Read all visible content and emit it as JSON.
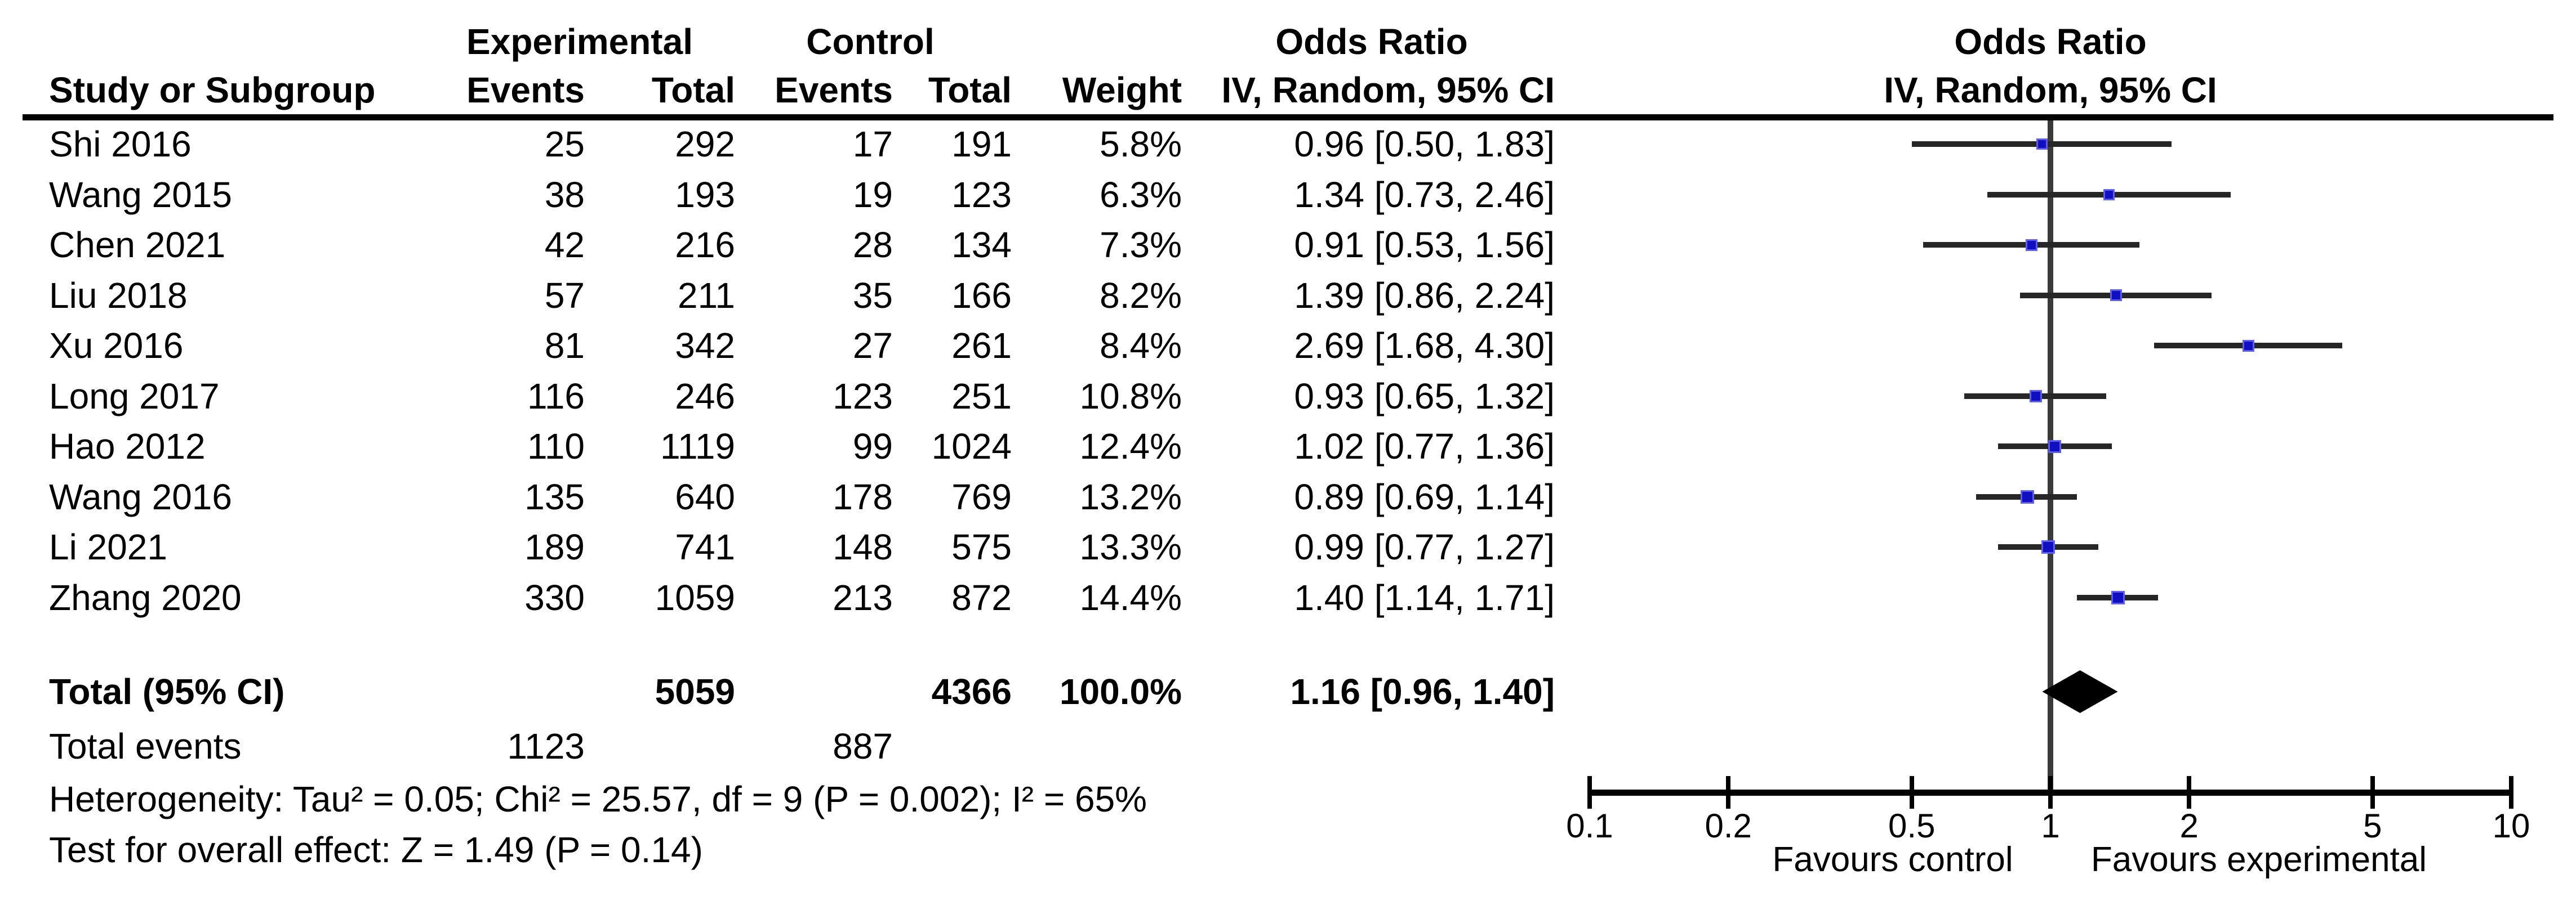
{
  "header": {
    "group_experimental": "Experimental",
    "group_control": "Control",
    "group_odds_ratio": "Odds Ratio",
    "col_study": "Study or Subgroup",
    "col_events": "Events",
    "col_total": "Total",
    "col_weight": "Weight",
    "col_method_ci": "IV, Random, 95% CI",
    "plot_title": "Odds Ratio",
    "plot_subtitle": "IV, Random, 95% CI"
  },
  "studies": [
    {
      "name": "Shi 2016",
      "exp_events": "25",
      "exp_total": "292",
      "ctl_events": "17",
      "ctl_total": "191",
      "weight": "5.8%",
      "or_ci": "0.96 [0.50, 1.83]",
      "or": 0.96,
      "lo": 0.5,
      "hi": 1.83,
      "weight_val": 5.8
    },
    {
      "name": "Wang 2015",
      "exp_events": "38",
      "exp_total": "193",
      "ctl_events": "19",
      "ctl_total": "123",
      "weight": "6.3%",
      "or_ci": "1.34 [0.73, 2.46]",
      "or": 1.34,
      "lo": 0.73,
      "hi": 2.46,
      "weight_val": 6.3
    },
    {
      "name": "Chen 2021",
      "exp_events": "42",
      "exp_total": "216",
      "ctl_events": "28",
      "ctl_total": "134",
      "weight": "7.3%",
      "or_ci": "0.91 [0.53, 1.56]",
      "or": 0.91,
      "lo": 0.53,
      "hi": 1.56,
      "weight_val": 7.3
    },
    {
      "name": "Liu 2018",
      "exp_events": "57",
      "exp_total": "211",
      "ctl_events": "35",
      "ctl_total": "166",
      "weight": "8.2%",
      "or_ci": "1.39 [0.86, 2.24]",
      "or": 1.39,
      "lo": 0.86,
      "hi": 2.24,
      "weight_val": 8.2
    },
    {
      "name": "Xu 2016",
      "exp_events": "81",
      "exp_total": "342",
      "ctl_events": "27",
      "ctl_total": "261",
      "weight": "8.4%",
      "or_ci": "2.69 [1.68, 4.30]",
      "or": 2.69,
      "lo": 1.68,
      "hi": 4.3,
      "weight_val": 8.4
    },
    {
      "name": "Long 2017",
      "exp_events": "116",
      "exp_total": "246",
      "ctl_events": "123",
      "ctl_total": "251",
      "weight": "10.8%",
      "or_ci": "0.93 [0.65, 1.32]",
      "or": 0.93,
      "lo": 0.65,
      "hi": 1.32,
      "weight_val": 10.8
    },
    {
      "name": "Hao 2012",
      "exp_events": "110",
      "exp_total": "1119",
      "ctl_events": "99",
      "ctl_total": "1024",
      "weight": "12.4%",
      "or_ci": "1.02 [0.77, 1.36]",
      "or": 1.02,
      "lo": 0.77,
      "hi": 1.36,
      "weight_val": 12.4
    },
    {
      "name": "Wang 2016",
      "exp_events": "135",
      "exp_total": "640",
      "ctl_events": "178",
      "ctl_total": "769",
      "weight": "13.2%",
      "or_ci": "0.89 [0.69, 1.14]",
      "or": 0.89,
      "lo": 0.69,
      "hi": 1.14,
      "weight_val": 13.2
    },
    {
      "name": "Li 2021",
      "exp_events": "189",
      "exp_total": "741",
      "ctl_events": "148",
      "ctl_total": "575",
      "weight": "13.3%",
      "or_ci": "0.99 [0.77, 1.27]",
      "or": 0.99,
      "lo": 0.77,
      "hi": 1.27,
      "weight_val": 13.3
    },
    {
      "name": "Zhang 2020",
      "exp_events": "330",
      "exp_total": "1059",
      "ctl_events": "213",
      "ctl_total": "872",
      "weight": "14.4%",
      "or_ci": "1.40 [1.14, 1.71]",
      "or": 1.4,
      "lo": 1.14,
      "hi": 1.71,
      "weight_val": 14.4
    }
  ],
  "total": {
    "label": "Total (95% CI)",
    "exp_total": "5059",
    "ctl_total": "4366",
    "weight": "100.0%",
    "or_ci": "1.16 [0.96, 1.40]",
    "or": 1.16,
    "lo": 0.96,
    "hi": 1.4
  },
  "total_events": {
    "label": "Total events",
    "exp": "1123",
    "ctl": "887"
  },
  "footer": {
    "heterogeneity": "Heterogeneity: Tau² = 0.05; Chi² = 25.57, df = 9 (P = 0.002); I² = 65%",
    "overall_effect": "Test for overall effect: Z = 1.49 (P = 0.14)"
  },
  "axis": {
    "ticks": [
      0.1,
      0.2,
      0.5,
      1,
      2,
      5,
      10
    ],
    "tick_labels": [
      "0.1",
      "0.2",
      "0.5",
      "1",
      "2",
      "5",
      "10"
    ],
    "favours_left": "Favours control",
    "favours_right": "Favours experimental"
  },
  "colors": {
    "marker_blue": "#1010c0",
    "marker_border_blue": "#5e5ee8",
    "ci_line": "#262626",
    "null_line": "#3a3a3a",
    "diamond": "#000000",
    "axis": "#000000",
    "text": "#000000",
    "background": "#ffffff"
  },
  "chart_data": {
    "type": "scatter",
    "subtype": "forest-plot-meta-analysis",
    "title": "Odds Ratio",
    "method": "IV, Random, 95% CI",
    "x_scale": "log10",
    "xlim": [
      0.1,
      10
    ],
    "x_ticks": [
      0.1,
      0.2,
      0.5,
      1,
      2,
      5,
      10
    ],
    "null_line_x": 1,
    "xlabel_left": "Favours control",
    "xlabel_right": "Favours experimental",
    "series": [
      {
        "name": "Shi 2016",
        "or": 0.96,
        "ci": [
          0.5,
          1.83
        ],
        "weight_pct": 5.8
      },
      {
        "name": "Wang 2015",
        "or": 1.34,
        "ci": [
          0.73,
          2.46
        ],
        "weight_pct": 6.3
      },
      {
        "name": "Chen 2021",
        "or": 0.91,
        "ci": [
          0.53,
          1.56
        ],
        "weight_pct": 7.3
      },
      {
        "name": "Liu 2018",
        "or": 1.39,
        "ci": [
          0.86,
          2.24
        ],
        "weight_pct": 8.2
      },
      {
        "name": "Xu 2016",
        "or": 2.69,
        "ci": [
          1.68,
          4.3
        ],
        "weight_pct": 8.4
      },
      {
        "name": "Long 2017",
        "or": 0.93,
        "ci": [
          0.65,
          1.32
        ],
        "weight_pct": 10.8
      },
      {
        "name": "Hao 2012",
        "or": 1.02,
        "ci": [
          0.77,
          1.36
        ],
        "weight_pct": 12.4
      },
      {
        "name": "Wang 2016",
        "or": 0.89,
        "ci": [
          0.69,
          1.14
        ],
        "weight_pct": 13.2
      },
      {
        "name": "Li 2021",
        "or": 0.99,
        "ci": [
          0.77,
          1.27
        ],
        "weight_pct": 13.3
      },
      {
        "name": "Zhang 2020",
        "or": 1.4,
        "ci": [
          1.14,
          1.71
        ],
        "weight_pct": 14.4
      }
    ],
    "total": {
      "or": 1.16,
      "ci": [
        0.96,
        1.4
      ],
      "weight_pct": 100.0,
      "exp_total": 5059,
      "ctl_total": 4366,
      "exp_events": 1123,
      "ctl_events": 887
    },
    "heterogeneity": {
      "tau2": 0.05,
      "chi2": 25.57,
      "df": 9,
      "p": 0.002,
      "i2_pct": 65
    },
    "overall_effect": {
      "z": 1.49,
      "p": 0.14
    }
  }
}
